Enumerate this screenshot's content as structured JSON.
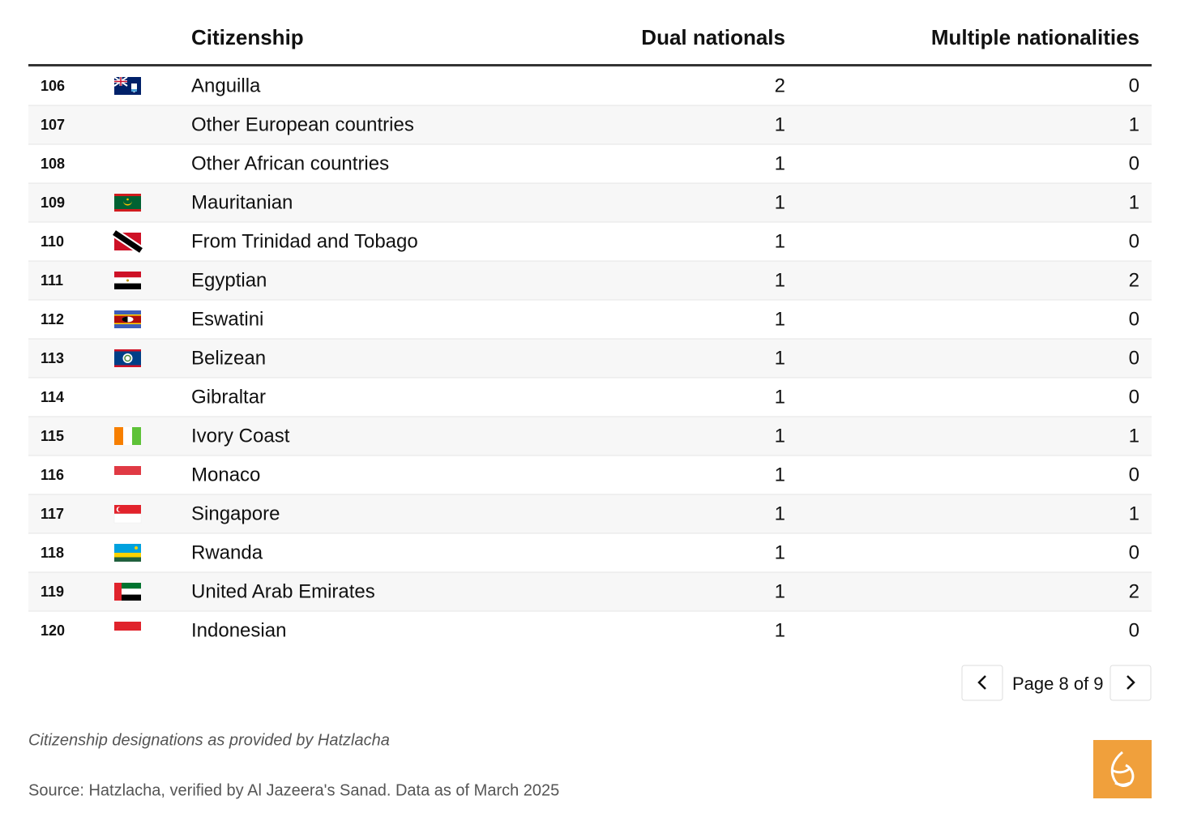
{
  "table": {
    "header": [
      "Citizenship",
      "Dual nationals",
      "Multiple nationalities"
    ],
    "rows": [
      [
        106,
        "Anguilla",
        2,
        0
      ],
      [
        107,
        "Other European countries",
        1,
        1
      ],
      [
        108,
        "Other African countries",
        1,
        0
      ],
      [
        109,
        "Mauritanian",
        1,
        1
      ],
      [
        110,
        "From Trinidad and Tobago",
        1,
        0
      ],
      [
        111,
        "Egyptian",
        1,
        2
      ],
      [
        112,
        "Eswatini",
        1,
        0
      ],
      [
        113,
        "Belizean",
        1,
        0
      ],
      [
        114,
        "Gibraltar",
        1,
        0
      ],
      [
        115,
        "Ivory Coast",
        1,
        1
      ],
      [
        116,
        "Monaco",
        1,
        0
      ],
      [
        117,
        "Singapore",
        1,
        1
      ],
      [
        118,
        "Rwanda",
        1,
        0
      ],
      [
        119,
        "United Arab Emirates",
        1,
        2
      ],
      [
        120,
        "Indonesian",
        1,
        0
      ]
    ]
  },
  "pagination": {
    "label": "Page 8 of 9"
  },
  "footer": {
    "note": "Citizenship designations as provided by Hatzlacha",
    "source": "Source: Hatzlacha, verified by Al Jazeera's Sanad. Data as of March 2025"
  }
}
